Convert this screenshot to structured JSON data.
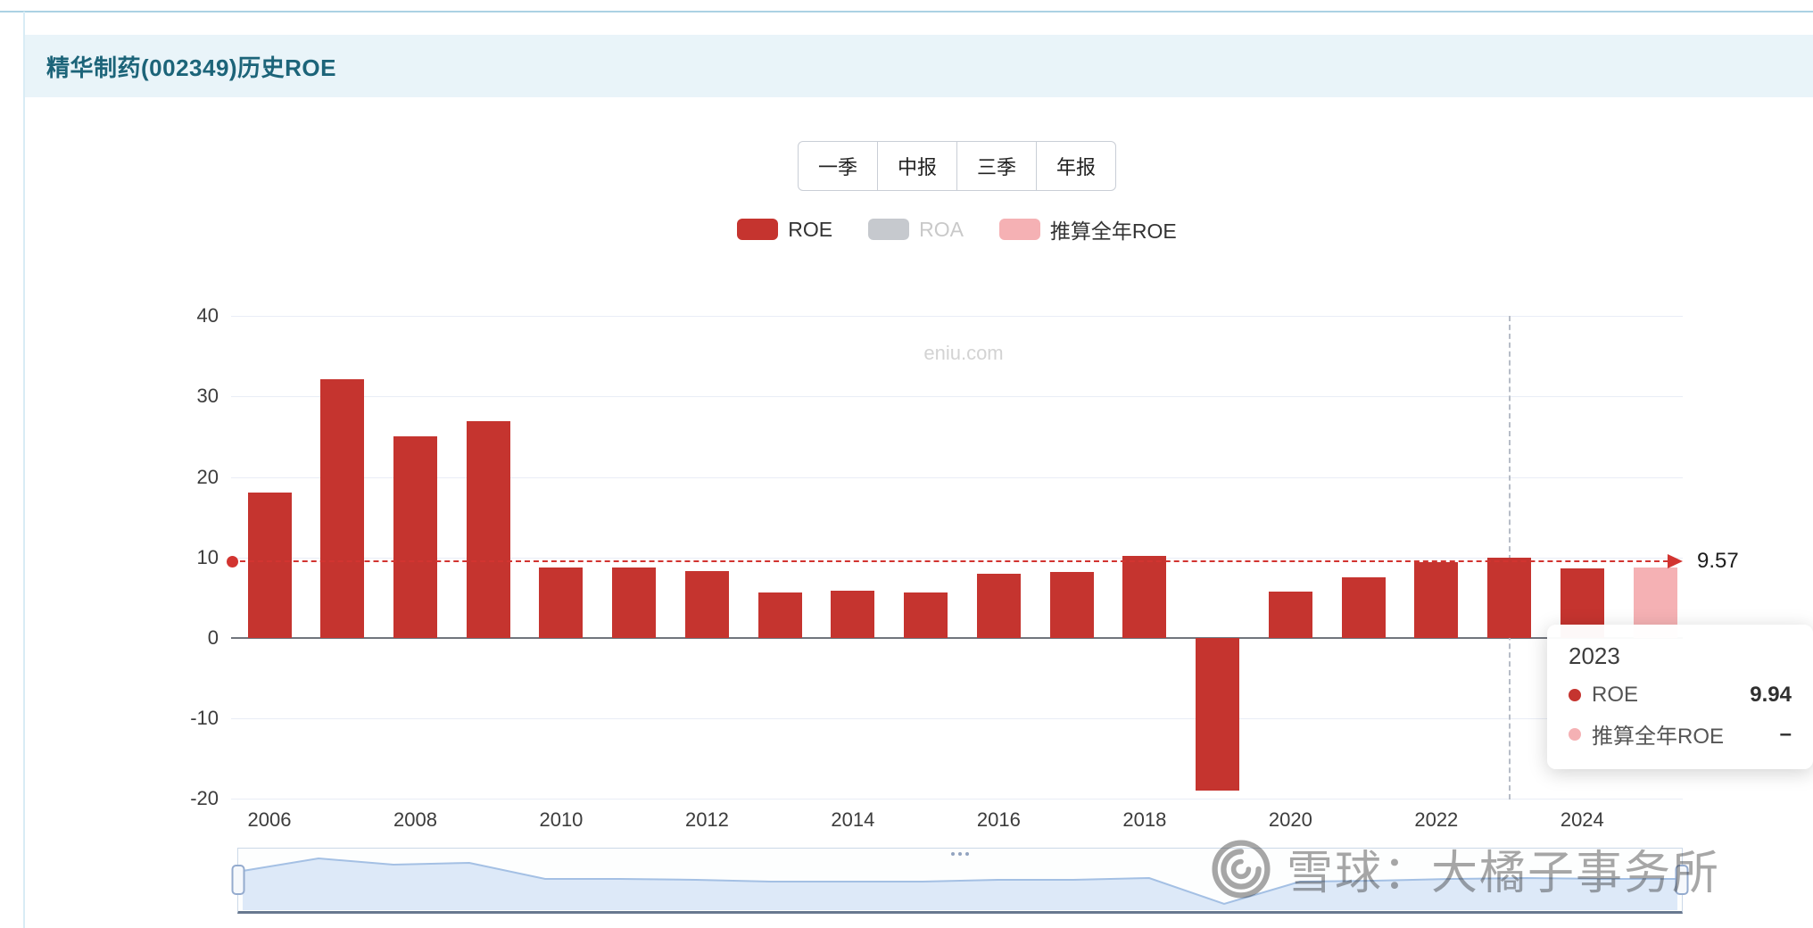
{
  "page": {
    "title": "精华制药(002349)历史ROE"
  },
  "period_tabs": [
    {
      "label": "一季"
    },
    {
      "label": "中报"
    },
    {
      "label": "三季"
    },
    {
      "label": "年报"
    }
  ],
  "legend": [
    {
      "label": "ROE",
      "color": "#c5342f",
      "active": true
    },
    {
      "label": "ROA",
      "color": "#c6c9ce",
      "active": false
    },
    {
      "label": "推算全年ROE",
      "color": "#f5b1b4",
      "active": true
    }
  ],
  "chart_data": {
    "type": "bar",
    "title": "精华制药(002349)历史ROE",
    "watermark": "eniu.com",
    "categories": [
      "2006",
      "2007",
      "2008",
      "2009",
      "2010",
      "2011",
      "2012",
      "2013",
      "2014",
      "2015",
      "2016",
      "2017",
      "2018",
      "2019",
      "2020",
      "2021",
      "2022",
      "2023",
      "2024",
      "2025"
    ],
    "series": [
      {
        "name": "ROE",
        "color": "#c5342f",
        "values": [
          18.1,
          32.2,
          25.1,
          26.9,
          8.8,
          8.8,
          8.3,
          5.7,
          5.9,
          5.7,
          8.0,
          8.2,
          10.2,
          -19.0,
          5.8,
          7.5,
          9.4,
          9.94,
          8.7,
          null
        ]
      },
      {
        "name": "推算全年ROE",
        "color": "#f5b1b4",
        "values": [
          null,
          null,
          null,
          null,
          null,
          null,
          null,
          null,
          null,
          null,
          null,
          null,
          null,
          null,
          null,
          null,
          null,
          null,
          null,
          8.8
        ]
      }
    ],
    "ylim": [
      -20,
      40
    ],
    "yticks": [
      40,
      30,
      20,
      10,
      0,
      -10,
      -20
    ],
    "xtick_labels": [
      "2006",
      "2008",
      "2010",
      "2012",
      "2014",
      "2016",
      "2018",
      "2020",
      "2022",
      "2024"
    ],
    "grid": true,
    "legend_position": "top",
    "reference_line": {
      "value": 9.57,
      "label": "9.57",
      "color": "#d23430"
    },
    "axis_pointer_year": "2023"
  },
  "tooltip": {
    "title": "2023",
    "rows": [
      {
        "label": "ROE",
        "value": "9.94",
        "color": "#c5342f"
      },
      {
        "label": "推算全年ROE",
        "value": "–",
        "color": "#f5b1b4"
      }
    ]
  },
  "footer_watermark": {
    "text": "雪球：大橘子事务所"
  }
}
